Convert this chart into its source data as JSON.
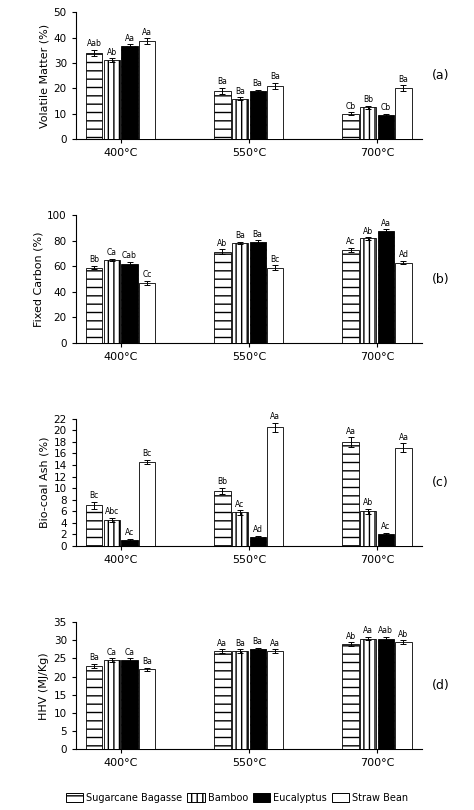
{
  "panels": [
    {
      "label": "(a)",
      "ylabel": "Volatile Matter (%)",
      "ylim": [
        0,
        50
      ],
      "yticks": [
        0,
        10,
        20,
        30,
        40,
        50
      ],
      "groups": [
        "400°C",
        "550°C",
        "700°C"
      ],
      "values": [
        [
          34.0,
          31.0,
          36.5,
          38.5
        ],
        [
          19.0,
          16.0,
          19.0,
          21.0
        ],
        [
          10.0,
          12.5,
          9.5,
          20.0
        ]
      ],
      "errors": [
        [
          1.2,
          0.8,
          0.8,
          1.2
        ],
        [
          1.2,
          0.6,
          0.5,
          1.2
        ],
        [
          0.6,
          0.6,
          0.5,
          1.2
        ]
      ],
      "annotations": [
        [
          "Aab",
          "Ab",
          "Aa",
          "Aa"
        ],
        [
          "Ba",
          "Ba",
          "Ba",
          "Ba"
        ],
        [
          "Cb",
          "Bb",
          "Cb",
          "Ba"
        ]
      ]
    },
    {
      "label": "(b)",
      "ylabel": "Fixed Carbon (%)",
      "ylim": [
        0,
        100
      ],
      "yticks": [
        0,
        20,
        40,
        60,
        80,
        100
      ],
      "groups": [
        "400°C",
        "550°C",
        "700°C"
      ],
      "values": [
        [
          59.0,
          65.0,
          62.0,
          47.0
        ],
        [
          71.5,
          78.5,
          79.5,
          59.0
        ],
        [
          73.0,
          82.0,
          88.0,
          63.0
        ]
      ],
      "errors": [
        [
          1.5,
          1.0,
          1.5,
          1.5
        ],
        [
          2.0,
          1.0,
          1.0,
          2.0
        ],
        [
          1.5,
          1.0,
          1.0,
          1.5
        ]
      ],
      "annotations": [
        [
          "Bb",
          "Ca",
          "Cab",
          "Cc"
        ],
        [
          "Ab",
          "Ba",
          "Ba",
          "Bc"
        ],
        [
          "Ac",
          "Ab",
          "Aa",
          "Ad"
        ]
      ]
    },
    {
      "label": "(c)",
      "ylabel": "Bio-coal Ash (%)",
      "ylim": [
        0,
        22
      ],
      "yticks": [
        0,
        2,
        4,
        6,
        8,
        10,
        12,
        14,
        16,
        18,
        20,
        22
      ],
      "groups": [
        "400°C",
        "550°C",
        "700°C"
      ],
      "values": [
        [
          7.0,
          4.5,
          1.0,
          14.5
        ],
        [
          9.5,
          5.8,
          1.5,
          20.5
        ],
        [
          18.0,
          6.0,
          2.0,
          17.0
        ]
      ],
      "errors": [
        [
          0.6,
          0.4,
          0.2,
          0.4
        ],
        [
          0.6,
          0.4,
          0.3,
          0.8
        ],
        [
          0.8,
          0.4,
          0.3,
          0.8
        ]
      ],
      "annotations": [
        [
          "Bc",
          "Abc",
          "Ac",
          "Bc"
        ],
        [
          "Bb",
          "Ac",
          "Ad",
          "Aa"
        ],
        [
          "Aa",
          "Ab",
          "Ac",
          "Aa"
        ]
      ]
    },
    {
      "label": "(d)",
      "ylabel": "HHV (MJ/Kg)",
      "ylim": [
        0,
        35
      ],
      "yticks": [
        0,
        5,
        10,
        15,
        20,
        25,
        30,
        35
      ],
      "groups": [
        "400°C",
        "550°C",
        "700°C"
      ],
      "values": [
        [
          23.0,
          24.5,
          24.5,
          22.0
        ],
        [
          27.0,
          27.0,
          27.5,
          27.0
        ],
        [
          29.0,
          30.5,
          30.5,
          29.5
        ]
      ],
      "errors": [
        [
          0.5,
          0.5,
          0.5,
          0.5
        ],
        [
          0.5,
          0.5,
          0.5,
          0.5
        ],
        [
          0.5,
          0.5,
          0.5,
          0.5
        ]
      ],
      "annotations": [
        [
          "Ba",
          "Ca",
          "Ca",
          "Ba"
        ],
        [
          "Aa",
          "Ba",
          "Ba",
          "Aa"
        ],
        [
          "Ab",
          "Aa",
          "Aab",
          "Ab"
        ]
      ]
    }
  ],
  "legend_labels": [
    "Sugarcane Bagasse",
    "Bamboo",
    "Eucalyptus",
    "Straw Bean"
  ],
  "bar_colors": [
    "white",
    "white",
    "black",
    "white"
  ],
  "bar_hatches": [
    "--",
    "|||",
    "....",
    "...."
  ],
  "bar_hatch_colors": [
    "black",
    "black",
    "white",
    "black"
  ],
  "bar_edgecolors": [
    "black",
    "black",
    "black",
    "black"
  ],
  "bar_width": 0.055
}
